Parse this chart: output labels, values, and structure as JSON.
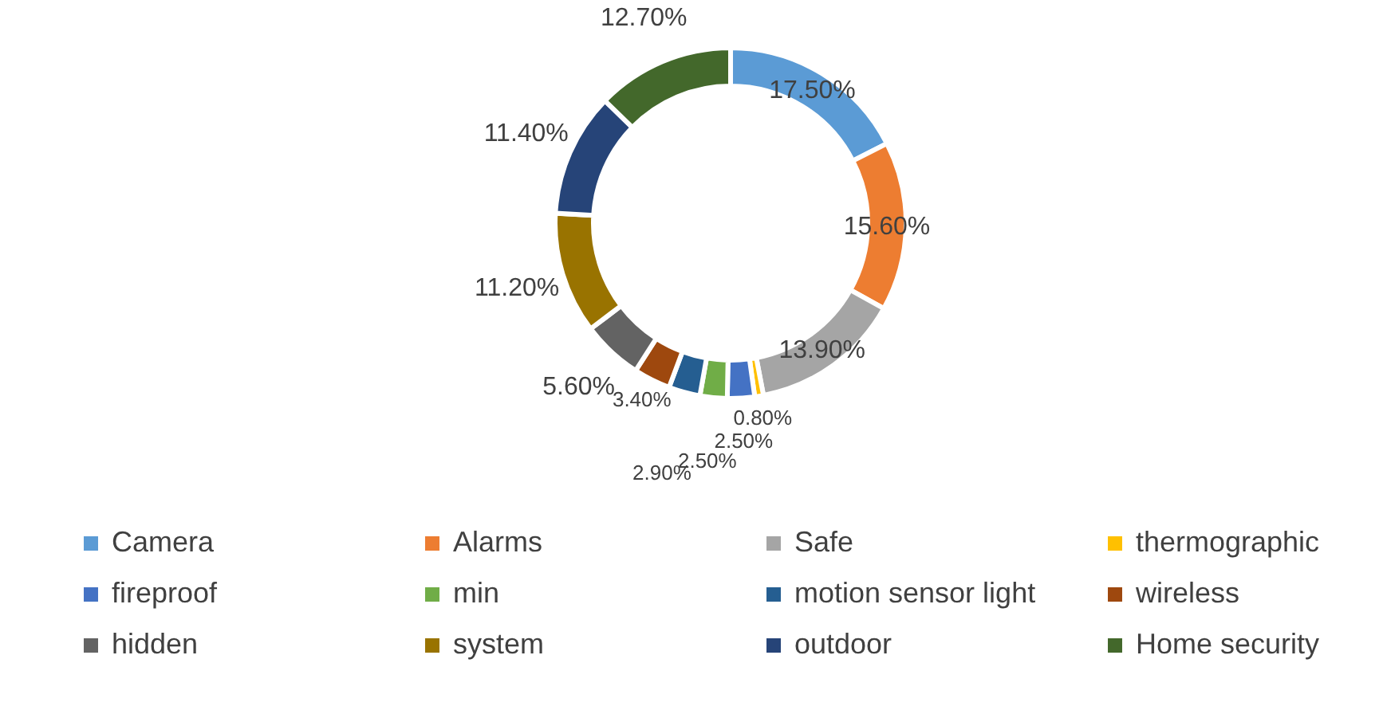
{
  "chart_data": {
    "type": "donut",
    "categories": [
      "Camera",
      "Alarms",
      "Safe",
      "thermographic",
      "fireproof",
      "min",
      "motion sensor light",
      "wireless",
      "hidden",
      "system",
      "outdoor",
      "Home security"
    ],
    "values": [
      17.5,
      15.6,
      13.9,
      0.8,
      2.5,
      2.5,
      2.9,
      3.4,
      5.6,
      11.2,
      11.4,
      12.7
    ],
    "value_labels": [
      "17.50%",
      "15.60%",
      "13.90%",
      "0.80%",
      "2.50%",
      "2.50%",
      "2.90%",
      "3.40%",
      "5.60%",
      "11.20%",
      "11.40%",
      "12.70%"
    ],
    "colors": [
      "#5b9bd5",
      "#ed7d31",
      "#a5a5a5",
      "#ffc000",
      "#4472c4",
      "#70ad47",
      "#255e91",
      "#9e480e",
      "#636363",
      "#997300",
      "#264478",
      "#43682b"
    ],
    "legend": "bottom"
  }
}
